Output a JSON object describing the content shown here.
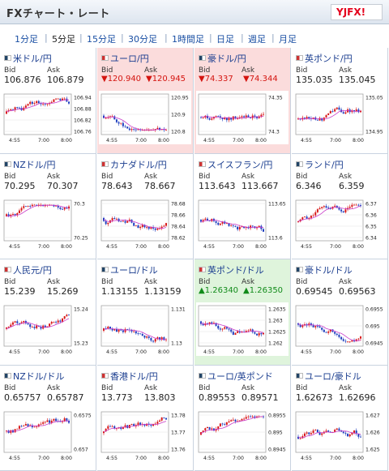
{
  "header": {
    "title": "FXチャート・レート",
    "logo_text": "YJFX!"
  },
  "tabs": [
    {
      "label": "1分足",
      "active": false
    },
    {
      "label": "5分足",
      "active": true
    },
    {
      "label": "15分足",
      "active": false
    },
    {
      "label": "30分足",
      "active": false
    },
    {
      "label": "1時間足",
      "active": false
    },
    {
      "label": "日足",
      "active": false
    },
    {
      "label": "週足",
      "active": false
    },
    {
      "label": "月足",
      "active": false
    }
  ],
  "colors": {
    "bull": "#d81919",
    "bear": "#1f3fbf",
    "ma": "#c93bc9",
    "up_bg": "#dff4dc",
    "down_bg": "#fbdcdc"
  },
  "pairs": [
    {
      "name": "米ドル/円",
      "bid": "106.876",
      "ask": "106.879",
      "state": "none",
      "flag": "c2",
      "ticks": [
        "106.94",
        "106.88",
        "106.82",
        "106.76"
      ],
      "seed": 1
    },
    {
      "name": "ユーロ/円",
      "bid": "▼120.940",
      "ask": "▼120.945",
      "state": "down",
      "flag": "c1",
      "ticks": [
        "120.95",
        "120.9",
        "120.8"
      ],
      "seed": 2
    },
    {
      "name": "豪ドル/円",
      "bid": "▼74.337",
      "ask": "▼74.344",
      "state": "down",
      "flag": "c2",
      "ticks": [
        "74.35",
        "74.3"
      ],
      "seed": 3
    },
    {
      "name": "英ポンド/円",
      "bid": "135.035",
      "ask": "135.045",
      "state": "none",
      "flag": "c1",
      "ticks": [
        "135.05",
        "134.95"
      ],
      "seed": 4
    },
    {
      "name": "NZドル/円",
      "bid": "70.295",
      "ask": "70.307",
      "state": "none",
      "flag": "c2",
      "ticks": [
        "70.3",
        "70.25"
      ],
      "seed": 5
    },
    {
      "name": "カナダドル/円",
      "bid": "78.643",
      "ask": "78.667",
      "state": "none",
      "flag": "c1",
      "ticks": [
        "78.68",
        "78.66",
        "78.64",
        "78.62"
      ],
      "seed": 6
    },
    {
      "name": "スイスフラン/円",
      "bid": "113.643",
      "ask": "113.667",
      "state": "none",
      "flag": "c1",
      "ticks": [
        "113.65",
        "113.6"
      ],
      "seed": 7
    },
    {
      "name": "ランド/円",
      "bid": "6.346",
      "ask": "6.359",
      "state": "none",
      "flag": "c2",
      "ticks": [
        "6.37",
        "6.36",
        "6.35",
        "6.34"
      ],
      "seed": 8
    },
    {
      "name": "人民元/円",
      "bid": "15.239",
      "ask": "15.269",
      "state": "none",
      "flag": "c1",
      "ticks": [
        "15.24",
        "15.23"
      ],
      "seed": 9
    },
    {
      "name": "ユーロ/ドル",
      "bid": "1.13155",
      "ask": "1.13159",
      "state": "none",
      "flag": "c2",
      "ticks": [
        "1.131",
        "1.13"
      ],
      "seed": 10
    },
    {
      "name": "英ポンド/ドル",
      "bid": "▲1.26340",
      "ask": "▲1.26350",
      "state": "up",
      "flag": "c1",
      "ticks": [
        "1.2635",
        "1.263",
        "1.2625",
        "1.262"
      ],
      "seed": 11
    },
    {
      "name": "豪ドル/ドル",
      "bid": "0.69545",
      "ask": "0.69563",
      "state": "none",
      "flag": "c2",
      "ticks": [
        "0.6955",
        "0.695",
        "0.6945"
      ],
      "seed": 12
    },
    {
      "name": "NZドル/ドル",
      "bid": "0.65757",
      "ask": "0.65787",
      "state": "none",
      "flag": "c2",
      "ticks": [
        "0.6575",
        "0.657"
      ],
      "seed": 13
    },
    {
      "name": "香港ドル/円",
      "bid": "13.773",
      "ask": "13.803",
      "state": "none",
      "flag": "c1",
      "ticks": [
        "13.78",
        "13.77",
        "13.76"
      ],
      "seed": 14
    },
    {
      "name": "ユーロ/英ポンド",
      "bid": "0.89553",
      "ask": "0.89571",
      "state": "none",
      "flag": "c2",
      "ticks": [
        "0.8955",
        "0.895",
        "0.8945"
      ],
      "seed": 15
    },
    {
      "name": "ユーロ/豪ドル",
      "bid": "1.62673",
      "ask": "1.62696",
      "state": "none",
      "flag": "c2",
      "ticks": [
        "1.627",
        "1.626",
        "1.625"
      ],
      "seed": 16
    }
  ],
  "labels": {
    "bid": "Bid",
    "ask": "Ask"
  },
  "x_ticks": [
    "4:55",
    "7:00",
    "8:00"
  ]
}
